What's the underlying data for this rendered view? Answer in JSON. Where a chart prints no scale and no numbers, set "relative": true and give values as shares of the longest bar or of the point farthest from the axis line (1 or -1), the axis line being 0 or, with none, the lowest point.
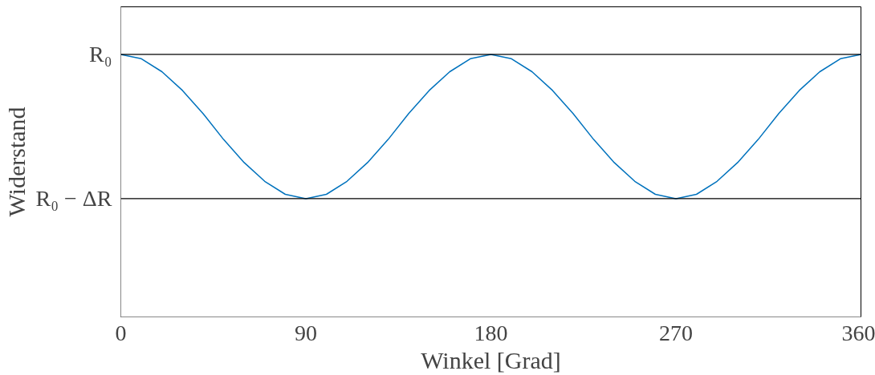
{
  "chart_data": {
    "type": "line",
    "xlabel": "Winkel [Grad]",
    "ylabel": "Widerstand",
    "x": [
      0,
      10,
      20,
      30,
      40,
      50,
      60,
      70,
      80,
      90,
      100,
      110,
      120,
      130,
      140,
      150,
      160,
      170,
      180,
      190,
      200,
      210,
      220,
      230,
      240,
      250,
      260,
      270,
      280,
      290,
      300,
      310,
      320,
      330,
      340,
      350,
      360
    ],
    "series": [
      {
        "color": "#0072bd",
        "values": [
          1,
          0.97,
          0.88,
          0.75,
          0.59,
          0.41,
          0.25,
          0.12,
          0.03,
          0,
          0.03,
          0.12,
          0.25,
          0.41,
          0.59,
          0.75,
          0.88,
          0.97,
          1,
          0.97,
          0.88,
          0.75,
          0.59,
          0.41,
          0.25,
          0.12,
          0.03,
          0,
          0.03,
          0.12,
          0.25,
          0.41,
          0.59,
          0.75,
          0.88,
          0.97,
          1
        ]
      }
    ],
    "xlim": [
      0,
      360
    ],
    "xticks": [
      0,
      90,
      180,
      270,
      360
    ],
    "relative": true,
    "ref_lines": [
      {
        "axis": "y",
        "value": 1,
        "label": "R₀",
        "color": "#000000"
      },
      {
        "axis": "y",
        "value": 0,
        "label": "R₀ − ΔR",
        "color": "#000000"
      }
    ],
    "marker": "none",
    "line_style": "solid"
  }
}
